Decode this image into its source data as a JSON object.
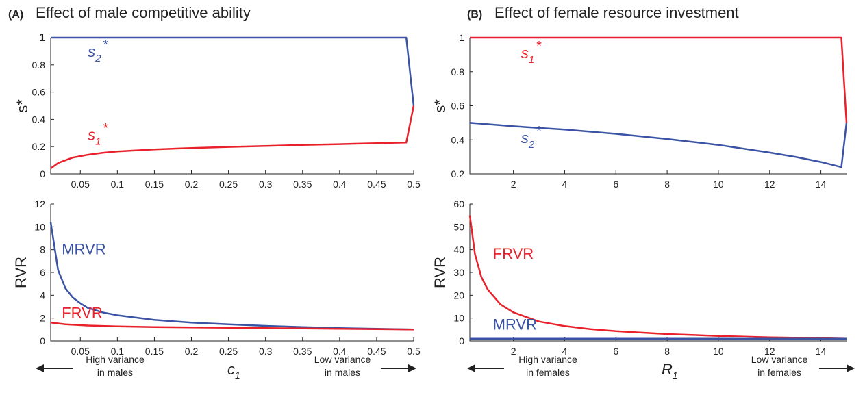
{
  "colors": {
    "blue": "#3a53a4",
    "red": "#e8212b",
    "text": "#222222"
  },
  "panels": [
    {
      "label": "(A)",
      "title": "Effect of male competitive ability",
      "x_var": "c",
      "x_sub": "1",
      "left_note": [
        "High variance",
        "in males"
      ],
      "right_note": [
        "Low variance",
        "in males"
      ],
      "arrow_icons": [
        "arrow-left-icon",
        "arrow-right-icon"
      ]
    },
    {
      "label": "(B)",
      "title": "Effect of female resource investment",
      "x_var": "R",
      "x_sub": "1",
      "left_note": [
        "High variance",
        "in females"
      ],
      "right_note": [
        "Low variance",
        "in females"
      ],
      "arrow_icons": [
        "arrow-left-icon",
        "arrow-right-icon"
      ]
    }
  ],
  "chart_data": [
    {
      "id": "A-top",
      "type": "line",
      "ylabel": "s*",
      "xlim": [
        0.01,
        0.5
      ],
      "ylim": [
        0,
        1
      ],
      "xticks": [
        0.05,
        0.1,
        0.15,
        0.2,
        0.25,
        0.3,
        0.35,
        0.4,
        0.45,
        0.5
      ],
      "xtick_labels": [
        "0.05",
        "0.1",
        "0.15",
        "0.2",
        "0.25",
        "0.3",
        "0.35",
        "0.4",
        "0.45",
        "0.5"
      ],
      "yticks": [
        0,
        0.2,
        0.4,
        0.6,
        0.8,
        1
      ],
      "ytick_labels": [
        "0",
        "0.2",
        "0.4",
        "0.6",
        "0.8",
        "1"
      ],
      "series": [
        {
          "name": "s2*",
          "color": "blue",
          "x": [
            0.01,
            0.1,
            0.2,
            0.3,
            0.4,
            0.49,
            0.5
          ],
          "y": [
            1,
            1,
            1,
            1,
            1,
            1,
            0.5
          ]
        },
        {
          "name": "s1*",
          "color": "red",
          "x": [
            0.01,
            0.02,
            0.04,
            0.06,
            0.08,
            0.1,
            0.15,
            0.2,
            0.25,
            0.3,
            0.35,
            0.4,
            0.45,
            0.49,
            0.5
          ],
          "y": [
            0.04,
            0.08,
            0.12,
            0.14,
            0.155,
            0.165,
            0.18,
            0.19,
            0.198,
            0.205,
            0.212,
            0.218,
            0.225,
            0.23,
            0.5
          ]
        }
      ],
      "annotations": [
        {
          "base": "s",
          "sub": "2",
          "sup": "*",
          "color": "blue",
          "x": 0.06,
          "y": 0.86
        },
        {
          "base": "s",
          "sub": "1",
          "sup": "*",
          "color": "red",
          "x": 0.06,
          "y": 0.25
        }
      ]
    },
    {
      "id": "A-bottom",
      "type": "line",
      "ylabel": "RVR",
      "xlim": [
        0.01,
        0.5
      ],
      "ylim": [
        0,
        12
      ],
      "xticks": [
        0.05,
        0.1,
        0.15,
        0.2,
        0.25,
        0.3,
        0.35,
        0.4,
        0.45,
        0.5
      ],
      "xtick_labels": [
        "0.05",
        "0.1",
        "0.15",
        "0.2",
        "0.25",
        "0.3",
        "0.35",
        "0.4",
        "0.45",
        "0.5"
      ],
      "yticks": [
        0,
        2,
        4,
        6,
        8,
        10,
        12
      ],
      "ytick_labels": [
        "0",
        "2",
        "4",
        "6",
        "8",
        "10",
        "12"
      ],
      "series": [
        {
          "name": "MRVR",
          "color": "blue",
          "x": [
            0.01,
            0.02,
            0.03,
            0.04,
            0.05,
            0.06,
            0.08,
            0.1,
            0.15,
            0.2,
            0.25,
            0.3,
            0.35,
            0.4,
            0.45,
            0.5
          ],
          "y": [
            10.4,
            6.2,
            4.6,
            3.8,
            3.3,
            2.9,
            2.5,
            2.25,
            1.85,
            1.6,
            1.45,
            1.32,
            1.22,
            1.13,
            1.06,
            1.0
          ]
        },
        {
          "name": "FRVR",
          "color": "red",
          "x": [
            0.01,
            0.03,
            0.06,
            0.1,
            0.15,
            0.2,
            0.25,
            0.3,
            0.35,
            0.4,
            0.45,
            0.5
          ],
          "y": [
            1.6,
            1.45,
            1.35,
            1.27,
            1.22,
            1.18,
            1.15,
            1.12,
            1.09,
            1.06,
            1.03,
            1.0
          ]
        }
      ],
      "annotations": [
        {
          "base": "MRVR",
          "color": "blue",
          "x": 0.025,
          "y": 7.6
        },
        {
          "base": "FRVR",
          "color": "red",
          "x": 0.025,
          "y": 2.0
        }
      ]
    },
    {
      "id": "B-top",
      "type": "line",
      "ylabel": "s*",
      "xlim": [
        0.3,
        15
      ],
      "ylim": [
        0.2,
        1
      ],
      "xticks": [
        2,
        4,
        6,
        8,
        10,
        12,
        14
      ],
      "xtick_labels": [
        "2",
        "4",
        "6",
        "8",
        "10",
        "12",
        "14"
      ],
      "yticks": [
        0.2,
        0.4,
        0.6,
        0.8,
        1
      ],
      "ytick_labels": [
        "0.2",
        "0.4",
        "0.6",
        "0.8",
        "1"
      ],
      "series": [
        {
          "name": "s1*",
          "color": "red",
          "x": [
            0.3,
            4,
            8,
            12,
            14.8,
            15
          ],
          "y": [
            1,
            1,
            1,
            1,
            1,
            0.5
          ]
        },
        {
          "name": "s2*",
          "color": "blue",
          "x": [
            0.3,
            2,
            4,
            6,
            8,
            10,
            12,
            13,
            14,
            14.8,
            15
          ],
          "y": [
            0.5,
            0.48,
            0.46,
            0.435,
            0.405,
            0.37,
            0.325,
            0.3,
            0.27,
            0.24,
            0.5
          ]
        }
      ],
      "annotations": [
        {
          "base": "s",
          "sub": "1",
          "sup": "*",
          "color": "red",
          "x": 2.3,
          "y": 0.88
        },
        {
          "base": "s",
          "sub": "2",
          "sup": "*",
          "color": "blue",
          "x": 2.3,
          "y": 0.38
        }
      ]
    },
    {
      "id": "B-bottom",
      "type": "line",
      "ylabel": "RVR",
      "xlim": [
        0.3,
        15
      ],
      "ylim": [
        0,
        60
      ],
      "xticks": [
        2,
        4,
        6,
        8,
        10,
        12,
        14
      ],
      "xtick_labels": [
        "2",
        "4",
        "6",
        "8",
        "10",
        "12",
        "14"
      ],
      "yticks": [
        0,
        10,
        20,
        30,
        40,
        50,
        60
      ],
      "ytick_labels": [
        "0",
        "10",
        "20",
        "30",
        "40",
        "50",
        "60"
      ],
      "series": [
        {
          "name": "FRVR",
          "color": "red",
          "x": [
            0.3,
            0.5,
            0.75,
            1,
            1.5,
            2,
            3,
            4,
            5,
            6,
            8,
            10,
            12,
            14,
            15
          ],
          "y": [
            55,
            38,
            28,
            22.5,
            16,
            12.5,
            8.5,
            6.5,
            5.2,
            4.3,
            3.0,
            2.2,
            1.6,
            1.2,
            1.0
          ]
        },
        {
          "name": "MRVR",
          "color": "blue",
          "x": [
            0.3,
            15
          ],
          "y": [
            1.0,
            1.0
          ]
        }
      ],
      "annotations": [
        {
          "base": "FRVR",
          "color": "red",
          "x": 1.2,
          "y": 36
        },
        {
          "base": "MRVR",
          "color": "blue",
          "x": 1.2,
          "y": 5.0
        }
      ]
    }
  ]
}
